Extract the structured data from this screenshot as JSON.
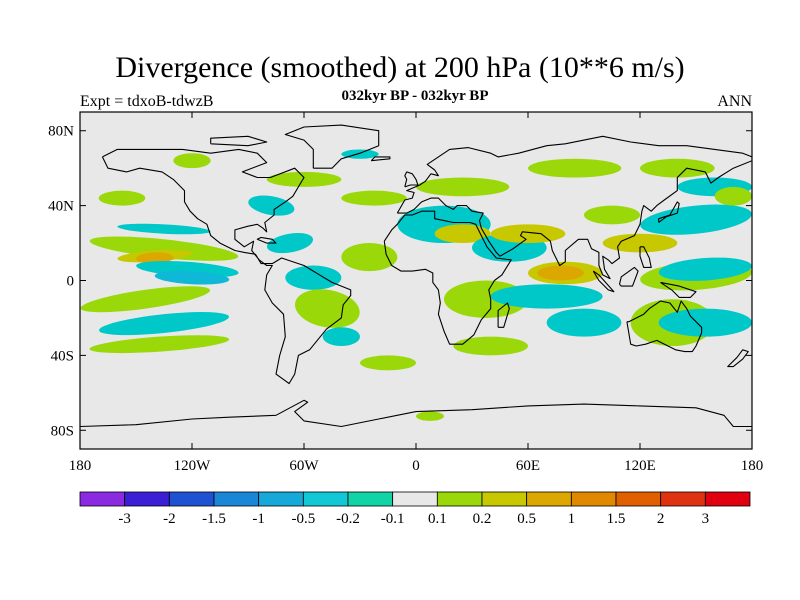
{
  "title": "Divergence (smoothed) at 200 hPa (10**6 m/s)",
  "subtitle": "032kyr BP - 032kyr BP",
  "experiment": "Expt = tdxoB-tdwzB",
  "season": "ANN",
  "axes": {
    "lat_ticks": [
      {
        "value": 80,
        "label": "80N"
      },
      {
        "value": 40,
        "label": "40N"
      },
      {
        "value": 0,
        "label": "0"
      },
      {
        "value": -40,
        "label": "40S"
      },
      {
        "value": -80,
        "label": "80S"
      }
    ],
    "lon_ticks": [
      {
        "value": -180,
        "label": "180"
      },
      {
        "value": -120,
        "label": "120W"
      },
      {
        "value": -60,
        "label": "60W"
      },
      {
        "value": 0,
        "label": "0"
      },
      {
        "value": 60,
        "label": "60E"
      },
      {
        "value": 120,
        "label": "120E"
      },
      {
        "value": 180,
        "label": "180"
      }
    ],
    "lat_range": [
      -90,
      90
    ],
    "lon_range": [
      -180,
      180
    ]
  },
  "colorbar": {
    "labels": [
      "-3",
      "-2",
      "-1.5",
      "-1",
      "-0.5",
      "-0.2",
      "-0.1",
      "0.1",
      "0.2",
      "0.5",
      "1",
      "1.5",
      "2",
      "3"
    ],
    "colors": [
      "#8a2be2",
      "#3a1fd6",
      "#1f52d2",
      "#1a86d8",
      "#16a8d8",
      "#12c8d6",
      "#10d3a6",
      "#e8e8e8",
      "#9ad80a",
      "#c8c800",
      "#dca800",
      "#e08800",
      "#e06000",
      "#de3210",
      "#e00010"
    ]
  },
  "map_colors": {
    "background": "#e8e8e8",
    "neg_weak": "#00c8c8",
    "neg_mid": "#10b8d8",
    "pos_weak": "#9ad80a",
    "pos_mid": "#c8c800",
    "pos_strong": "#dca800"
  }
}
